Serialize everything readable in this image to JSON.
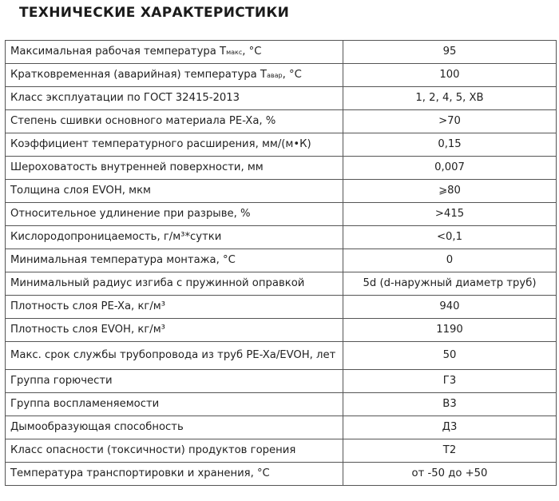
{
  "title": "ТЕХНИЧЕСКИЕ ХАРАКТЕРИСТИКИ",
  "rows": [
    {
      "param": "Максимальная рабочая температура T",
      "sub": "макс",
      "suffix": ", °C",
      "value": "95"
    },
    {
      "param": "Кратковременная (аварийная) температура T",
      "sub": "авар",
      "suffix": ", °C",
      "value": "100"
    },
    {
      "param": "Класс эксплуатации по ГОСТ 32415-2013",
      "value": "1, 2, 4, 5, ХВ"
    },
    {
      "param": "Степень сшивки основного материала PE-Xa, %",
      "value": ">70"
    },
    {
      "param": "Коэффициент температурного расширения, мм/(м•К)",
      "value": "0,15"
    },
    {
      "param": "Шероховатость внутренней поверхности, мм",
      "value": "0,007"
    },
    {
      "param": "Толщина слоя EVOH, мкм",
      "value": "⩾80"
    },
    {
      "param": "Относительное удлинение при разрыве, %",
      "value": ">415"
    },
    {
      "param": "Кислородопроницаемость, г/м³*сутки",
      "value": "<0,1"
    },
    {
      "param": "Минимальная температура монтажа, °C",
      "value": "0"
    },
    {
      "param": "Минимальный радиус изгиба с пружинной оправкой",
      "value": "5d (d-наружный диаметр труб)"
    },
    {
      "param": "Плотность слоя PE-Xa, кг/м³",
      "value": "940"
    },
    {
      "param": "Плотность слоя EVOH, кг/м³",
      "value": "1190"
    },
    {
      "param": "Макс. срок службы трубопровода из труб PE-Xa/EVOH, лет",
      "value": "50"
    },
    {
      "param": "Группа горючести",
      "value": "Г3"
    },
    {
      "param": "Группа воспламеняемости",
      "value": "В3"
    },
    {
      "param": "Дымообразующая способность",
      "value": "Д3"
    },
    {
      "param": "Класс опасности (токсичности) продуктов горения",
      "value": "Т2"
    },
    {
      "param": "Температура транспортировки и хранения, °C",
      "value": "от -50 до +50"
    }
  ]
}
